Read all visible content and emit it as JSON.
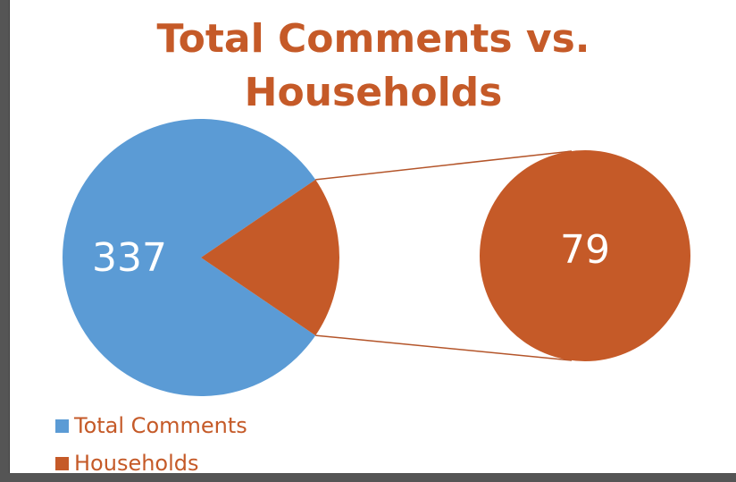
{
  "colors": {
    "total_comments": "#5B9BD5",
    "households": "#C55A28",
    "connector": "#B4552A",
    "title": "#C55A28"
  },
  "chart_data": {
    "type": "pie",
    "subtype": "pie-of-pie",
    "title_lines": [
      "Total Comments vs.",
      "Households"
    ],
    "categories": [
      "Total Comments",
      "Households"
    ],
    "values": [
      337,
      79
    ],
    "data_labels": [
      "337",
      "79"
    ],
    "legend": {
      "position": "bottom-left",
      "entries": [
        "Total Comments",
        "Households"
      ]
    }
  }
}
